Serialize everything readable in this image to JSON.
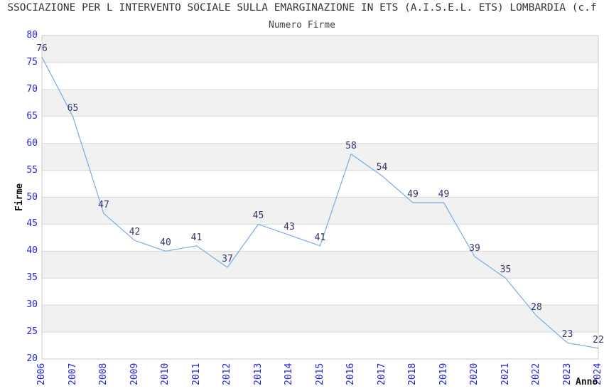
{
  "page": {
    "background": "#ffffff"
  },
  "chart_data": {
    "type": "line",
    "title": "SSOCIAZIONE PER L INTERVENTO SOCIALE SULLA EMARGINAZIONE IN ETS (A.I.S.E.L. ETS) LOMBARDIA (c.f",
    "subtitle": "Numero Firme",
    "xlabel": "Anno",
    "ylabel": "Firme",
    "categories": [
      "2006",
      "2007",
      "2008",
      "2009",
      "2010",
      "2011",
      "2012",
      "2013",
      "2014",
      "2015",
      "2016",
      "2017",
      "2018",
      "2019",
      "2020",
      "2021",
      "2022",
      "2023",
      "2024"
    ],
    "values": [
      76,
      65,
      47,
      42,
      40,
      41,
      37,
      45,
      43,
      41,
      58,
      54,
      49,
      49,
      39,
      35,
      28,
      23,
      22
    ],
    "ylim": [
      20,
      80
    ],
    "ytick_step": 5,
    "grid": true,
    "legend": "none",
    "bands": "alternating-horizontal",
    "x_tick_rotation": -90,
    "colors": {
      "line": "#79ace4",
      "tick_label": "#2222dd",
      "data_label": "#333366",
      "band": "#f1f1f1",
      "grid": "#d9d9d9",
      "border": "#c9c9c9",
      "title": "#333333",
      "subtitle": "#444444",
      "axis_title": "#111111"
    }
  }
}
